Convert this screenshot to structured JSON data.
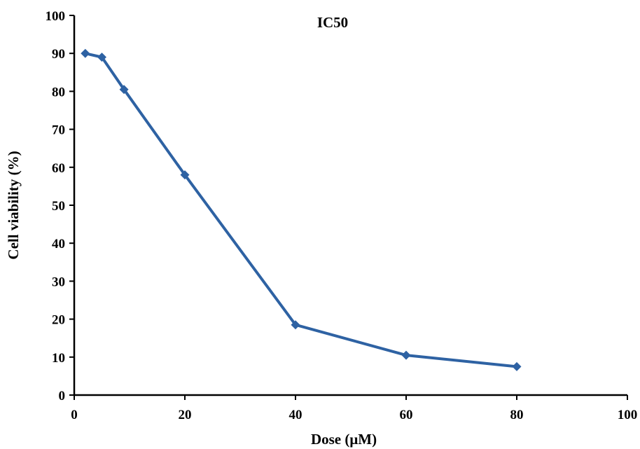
{
  "chart_data": {
    "type": "line",
    "title": "IC50",
    "xlabel": "Dose (μM)",
    "ylabel": "Cell viability (%)",
    "xlim": [
      0,
      100
    ],
    "ylim": [
      0,
      100
    ],
    "xticks": [
      0,
      20,
      40,
      60,
      80,
      100
    ],
    "yticks": [
      0,
      10,
      20,
      30,
      40,
      50,
      60,
      70,
      80,
      90,
      100
    ],
    "grid": false,
    "legend": "none",
    "series": [
      {
        "color": "#2e62a3",
        "marker": "diamond",
        "points": [
          {
            "x": 2,
            "y": 90
          },
          {
            "x": 5,
            "y": 89
          },
          {
            "x": 9,
            "y": 80.5
          },
          {
            "x": 20,
            "y": 58
          },
          {
            "x": 40,
            "y": 18.5
          },
          {
            "x": 60,
            "y": 10.5
          },
          {
            "x": 80,
            "y": 7.5
          }
        ]
      }
    ]
  }
}
